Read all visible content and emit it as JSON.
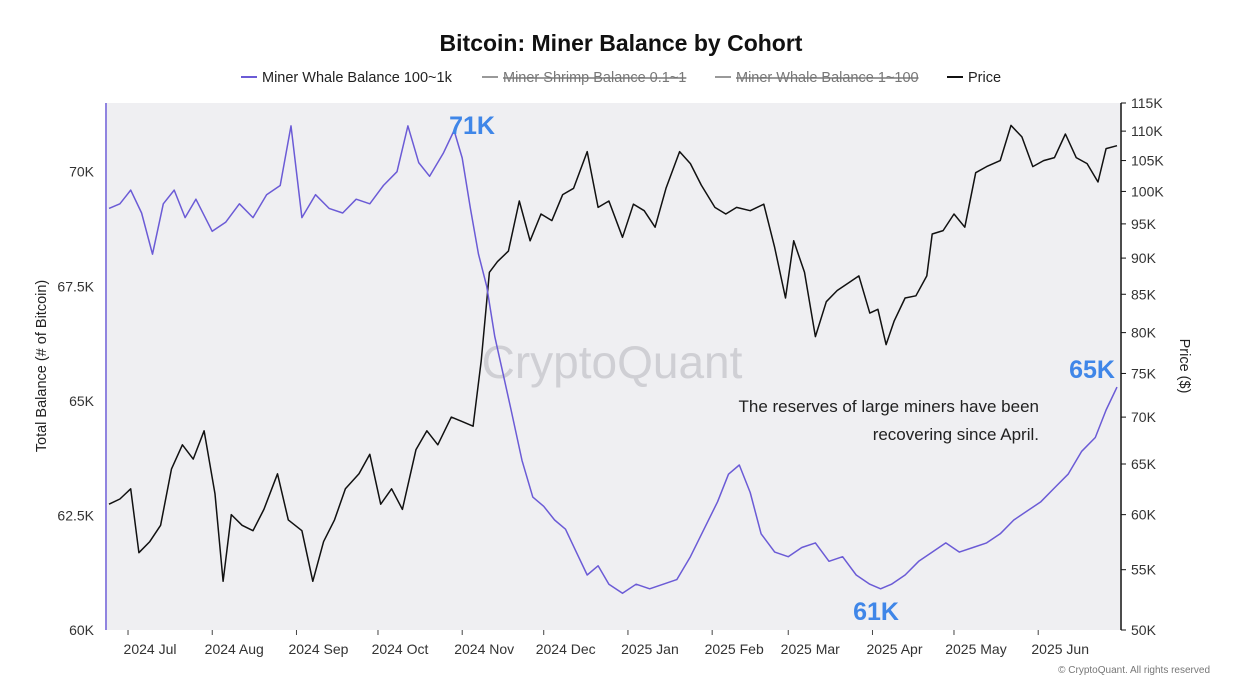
{
  "chart_data": {
    "type": "line",
    "title": "Bitcoin: Miner Balance by Cohort",
    "ylabel_left": "Total Balance (# of Bitcoin)",
    "ylabel_right": "Price ($)",
    "xticks": [
      "2024 Jul",
      "2024 Aug",
      "2024 Sep",
      "2024 Oct",
      "2024 Nov",
      "2024 Dec",
      "2025 Jan",
      "2025 Feb",
      "2025 Mar",
      "2025 Apr",
      "2025 May",
      "2025 Jun"
    ],
    "x_range": [
      "2024-06-24",
      "2025-06-30"
    ],
    "y_left": {
      "range": [
        60000,
        71500
      ],
      "ticks": [
        60000,
        62500,
        65000,
        67500,
        70000
      ],
      "tick_labels": [
        "60K",
        "62.5K",
        "65K",
        "67.5K",
        "70K"
      ]
    },
    "y_right": {
      "range": [
        50000,
        115000
      ],
      "scale": "log",
      "ticks": [
        50000,
        55000,
        60000,
        65000,
        70000,
        75000,
        80000,
        85000,
        90000,
        95000,
        100000,
        105000,
        110000,
        115000
      ],
      "tick_labels": [
        "50K",
        "55K",
        "60K",
        "65K",
        "70K",
        "75K",
        "80K",
        "85K",
        "90K",
        "95K",
        "100K",
        "105K",
        "110K",
        "115K"
      ]
    },
    "legend": [
      {
        "name": "Miner Whale Balance 100~1k",
        "color": "#6b5bd6",
        "hidden": false
      },
      {
        "name": "Miner Shrimp Balance 0.1~1",
        "color": "#999999",
        "hidden": true
      },
      {
        "name": "Miner Whale Balance 1~100",
        "color": "#999999",
        "hidden": true
      },
      {
        "name": "Price",
        "color": "#111111",
        "hidden": false
      }
    ],
    "series": [
      {
        "name": "Miner Whale Balance 100~1k",
        "axis": "left",
        "color": "#6b5bd6",
        "points": [
          [
            "2024-06-24",
            69200
          ],
          [
            "2024-06-28",
            69300
          ],
          [
            "2024-07-02",
            69600
          ],
          [
            "2024-07-06",
            69100
          ],
          [
            "2024-07-10",
            68200
          ],
          [
            "2024-07-14",
            69300
          ],
          [
            "2024-07-18",
            69600
          ],
          [
            "2024-07-22",
            69000
          ],
          [
            "2024-07-26",
            69400
          ],
          [
            "2024-08-01",
            68700
          ],
          [
            "2024-08-06",
            68900
          ],
          [
            "2024-08-11",
            69300
          ],
          [
            "2024-08-16",
            69000
          ],
          [
            "2024-08-21",
            69500
          ],
          [
            "2024-08-26",
            69700
          ],
          [
            "2024-08-30",
            71000
          ],
          [
            "2024-09-03",
            69000
          ],
          [
            "2024-09-08",
            69500
          ],
          [
            "2024-09-13",
            69200
          ],
          [
            "2024-09-18",
            69100
          ],
          [
            "2024-09-23",
            69400
          ],
          [
            "2024-09-28",
            69300
          ],
          [
            "2024-10-03",
            69700
          ],
          [
            "2024-10-08",
            70000
          ],
          [
            "2024-10-12",
            71000
          ],
          [
            "2024-10-16",
            70200
          ],
          [
            "2024-10-20",
            69900
          ],
          [
            "2024-10-25",
            70400
          ],
          [
            "2024-10-29",
            70900
          ],
          [
            "2024-11-01",
            70300
          ],
          [
            "2024-11-04",
            69200
          ],
          [
            "2024-11-07",
            68200
          ],
          [
            "2024-11-10",
            67500
          ],
          [
            "2024-11-13",
            66400
          ],
          [
            "2024-11-16",
            65600
          ],
          [
            "2024-11-19",
            64800
          ],
          [
            "2024-11-23",
            63700
          ],
          [
            "2024-11-27",
            62900
          ],
          [
            "2024-12-01",
            62700
          ],
          [
            "2024-12-05",
            62400
          ],
          [
            "2024-12-09",
            62200
          ],
          [
            "2024-12-13",
            61700
          ],
          [
            "2024-12-17",
            61200
          ],
          [
            "2024-12-21",
            61400
          ],
          [
            "2024-12-25",
            61000
          ],
          [
            "2024-12-30",
            60800
          ],
          [
            "2025-01-04",
            61000
          ],
          [
            "2025-01-09",
            60900
          ],
          [
            "2025-01-14",
            61000
          ],
          [
            "2025-01-19",
            61100
          ],
          [
            "2025-01-24",
            61600
          ],
          [
            "2025-01-29",
            62200
          ],
          [
            "2025-02-03",
            62800
          ],
          [
            "2025-02-07",
            63400
          ],
          [
            "2025-02-11",
            63600
          ],
          [
            "2025-02-15",
            63000
          ],
          [
            "2025-02-19",
            62100
          ],
          [
            "2025-02-24",
            61700
          ],
          [
            "2025-03-01",
            61600
          ],
          [
            "2025-03-06",
            61800
          ],
          [
            "2025-03-11",
            61900
          ],
          [
            "2025-03-16",
            61500
          ],
          [
            "2025-03-21",
            61600
          ],
          [
            "2025-03-26",
            61200
          ],
          [
            "2025-03-31",
            61000
          ],
          [
            "2025-04-04",
            60900
          ],
          [
            "2025-04-08",
            61000
          ],
          [
            "2025-04-13",
            61200
          ],
          [
            "2025-04-18",
            61500
          ],
          [
            "2025-04-23",
            61700
          ],
          [
            "2025-04-28",
            61900
          ],
          [
            "2025-05-03",
            61700
          ],
          [
            "2025-05-08",
            61800
          ],
          [
            "2025-05-13",
            61900
          ],
          [
            "2025-05-18",
            62100
          ],
          [
            "2025-05-23",
            62400
          ],
          [
            "2025-05-28",
            62600
          ],
          [
            "2025-06-02",
            62800
          ],
          [
            "2025-06-07",
            63100
          ],
          [
            "2025-06-12",
            63400
          ],
          [
            "2025-06-17",
            63900
          ],
          [
            "2025-06-22",
            64200
          ],
          [
            "2025-06-26",
            64800
          ],
          [
            "2025-06-30",
            65300
          ]
        ]
      },
      {
        "name": "Price",
        "axis": "right",
        "color": "#111111",
        "points": [
          [
            "2024-06-24",
            61000
          ],
          [
            "2024-06-28",
            61500
          ],
          [
            "2024-07-02",
            62500
          ],
          [
            "2024-07-05",
            56500
          ],
          [
            "2024-07-09",
            57500
          ],
          [
            "2024-07-13",
            59000
          ],
          [
            "2024-07-17",
            64500
          ],
          [
            "2024-07-21",
            67000
          ],
          [
            "2024-07-25",
            65500
          ],
          [
            "2024-07-29",
            68500
          ],
          [
            "2024-08-02",
            62000
          ],
          [
            "2024-08-05",
            54000
          ],
          [
            "2024-08-08",
            60000
          ],
          [
            "2024-08-12",
            59000
          ],
          [
            "2024-08-16",
            58500
          ],
          [
            "2024-08-20",
            60500
          ],
          [
            "2024-08-25",
            64000
          ],
          [
            "2024-08-29",
            59500
          ],
          [
            "2024-09-03",
            58500
          ],
          [
            "2024-09-07",
            54000
          ],
          [
            "2024-09-11",
            57500
          ],
          [
            "2024-09-15",
            59500
          ],
          [
            "2024-09-19",
            62500
          ],
          [
            "2024-09-24",
            64000
          ],
          [
            "2024-09-28",
            66000
          ],
          [
            "2024-10-02",
            61000
          ],
          [
            "2024-10-06",
            62500
          ],
          [
            "2024-10-10",
            60500
          ],
          [
            "2024-10-15",
            66500
          ],
          [
            "2024-10-19",
            68500
          ],
          [
            "2024-10-23",
            67000
          ],
          [
            "2024-10-28",
            70000
          ],
          [
            "2024-11-01",
            69500
          ],
          [
            "2024-11-05",
            69000
          ],
          [
            "2024-11-08",
            76500
          ],
          [
            "2024-11-11",
            88000
          ],
          [
            "2024-11-14",
            89500
          ],
          [
            "2024-11-18",
            91000
          ],
          [
            "2024-11-22",
            98500
          ],
          [
            "2024-11-26",
            92500
          ],
          [
            "2024-11-30",
            96500
          ],
          [
            "2024-12-04",
            95500
          ],
          [
            "2024-12-08",
            99500
          ],
          [
            "2024-12-12",
            100500
          ],
          [
            "2024-12-17",
            106500
          ],
          [
            "2024-12-21",
            97500
          ],
          [
            "2024-12-25",
            98500
          ],
          [
            "2024-12-30",
            93000
          ],
          [
            "2025-01-03",
            98000
          ],
          [
            "2025-01-07",
            97000
          ],
          [
            "2025-01-11",
            94500
          ],
          [
            "2025-01-15",
            100500
          ],
          [
            "2025-01-20",
            106500
          ],
          [
            "2025-01-24",
            104500
          ],
          [
            "2025-01-28",
            101000
          ],
          [
            "2025-02-02",
            97500
          ],
          [
            "2025-02-06",
            96500
          ],
          [
            "2025-02-10",
            97500
          ],
          [
            "2025-02-15",
            97000
          ],
          [
            "2025-02-20",
            98000
          ],
          [
            "2025-02-24",
            91500
          ],
          [
            "2025-02-28",
            84500
          ],
          [
            "2025-03-03",
            92500
          ],
          [
            "2025-03-07",
            88000
          ],
          [
            "2025-03-11",
            79500
          ],
          [
            "2025-03-15",
            84000
          ],
          [
            "2025-03-19",
            85500
          ],
          [
            "2025-03-23",
            86500
          ],
          [
            "2025-03-27",
            87500
          ],
          [
            "2025-03-31",
            82500
          ],
          [
            "2025-04-03",
            83000
          ],
          [
            "2025-04-06",
            78500
          ],
          [
            "2025-04-09",
            81500
          ],
          [
            "2025-04-13",
            84500
          ],
          [
            "2025-04-17",
            84800
          ],
          [
            "2025-04-21",
            87500
          ],
          [
            "2025-04-23",
            93500
          ],
          [
            "2025-04-27",
            94000
          ],
          [
            "2025-05-01",
            96500
          ],
          [
            "2025-05-05",
            94500
          ],
          [
            "2025-05-09",
            103000
          ],
          [
            "2025-05-13",
            104000
          ],
          [
            "2025-05-18",
            105000
          ],
          [
            "2025-05-22",
            111000
          ],
          [
            "2025-05-26",
            109000
          ],
          [
            "2025-05-30",
            104000
          ],
          [
            "2025-06-03",
            105000
          ],
          [
            "2025-06-07",
            105500
          ],
          [
            "2025-06-11",
            109500
          ],
          [
            "2025-06-15",
            105500
          ],
          [
            "2025-06-19",
            104500
          ],
          [
            "2025-06-23",
            101500
          ],
          [
            "2025-06-26",
            107000
          ],
          [
            "2025-06-30",
            107500
          ]
        ]
      }
    ],
    "annotations": [
      {
        "text": "71K",
        "role": "callout"
      },
      {
        "text": "61K",
        "role": "callout"
      },
      {
        "text": "65K",
        "role": "callout"
      },
      {
        "text": "The reserves of large miners have been",
        "role": "note"
      },
      {
        "text": "recovering since April.",
        "role": "note"
      }
    ],
    "watermark": "CryptoQuant",
    "credit": "© CryptoQuant. All rights reserved"
  }
}
